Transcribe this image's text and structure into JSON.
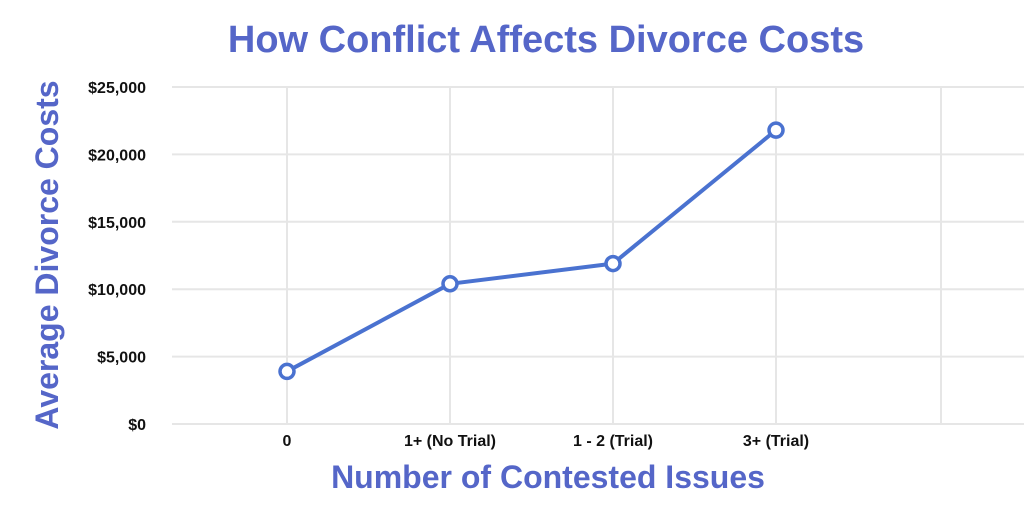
{
  "colors": {
    "accent": "#5566c8",
    "line": "#4a72d0",
    "grid": "#e6e6e6",
    "text": "#111111"
  },
  "chart_data": {
    "type": "line",
    "title": "How Conflict Affects Divorce Costs",
    "xlabel": "Number of Contested Issues",
    "ylabel": "Average Divorce Costs",
    "categories": [
      "0",
      "1+ (No Trial)",
      "1 - 2 (Trial)",
      "3+ (Trial)"
    ],
    "series": [
      {
        "values": [
          3900,
          10400,
          11900,
          21800
        ]
      }
    ],
    "ylim": [
      0,
      25000
    ],
    "yticks": [
      0,
      5000,
      10000,
      15000,
      20000,
      25000
    ],
    "ytick_labels": [
      "$0",
      "$5,000",
      "$10,000",
      "$15,000",
      "$20,000",
      "$25,000"
    ],
    "grid": true,
    "legend": "none"
  }
}
